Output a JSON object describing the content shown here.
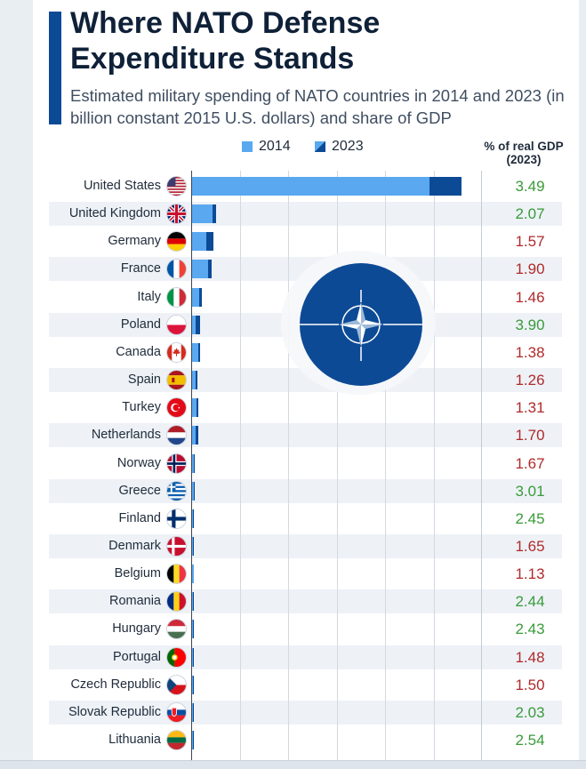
{
  "header": {
    "title": "Where NATO Defense Expenditure Stands",
    "subtitle": "Estimated military spending of NATO countries in 2014 and 2023 (in billion constant 2015 U.S. dollars) and share of GDP"
  },
  "legend": {
    "label_2014": "2014",
    "label_2023": "2023"
  },
  "gdp_header": "% of real GDP (2023)",
  "colors": {
    "bar_2014": "#5aa8f0",
    "bar_2023": "#0d4a96",
    "gdp_high": "#3a9a3a",
    "gdp_low": "#b02a2a",
    "nato_blue": "#0d4a96"
  },
  "chart_data": {
    "type": "bar",
    "orientation": "horizontal",
    "categories": [
      "United States",
      "United Kingdom",
      "Germany",
      "France",
      "Italy",
      "Poland",
      "Canada",
      "Spain",
      "Turkey",
      "Netherlands",
      "Norway",
      "Greece",
      "Finland",
      "Denmark",
      "Belgium",
      "Romania",
      "Hungary",
      "Portugal",
      "Czech Republic",
      "Slovak Republic",
      "Lithuania"
    ],
    "series": [
      {
        "name": "2014",
        "values": [
          654,
          57,
          40,
          45,
          19,
          10,
          16,
          11,
          13,
          10,
          6,
          4.5,
          3.4,
          3.4,
          3.9,
          2.4,
          1.2,
          2.6,
          1.9,
          1.0,
          0.3
        ]
      },
      {
        "name": "2023",
        "values": [
          743,
          66,
          59,
          54,
          27,
          22,
          23,
          14,
          16,
          16,
          7.5,
          6.2,
          5.0,
          5.4,
          6.0,
          6.0,
          3.0,
          3.3,
          3.5,
          2.3,
          1.9
        ]
      }
    ],
    "gdp_share_2023": [
      "3.49",
      "2.07",
      "1.57",
      "1.90",
      "1.46",
      "3.90",
      "1.38",
      "1.26",
      "1.31",
      "1.70",
      "1.67",
      "3.01",
      "2.45",
      "1.65",
      "1.13",
      "2.44",
      "2.43",
      "1.48",
      "1.50",
      "2.03",
      "2.54"
    ],
    "xlim": [
      0,
      800
    ],
    "grid": true
  }
}
